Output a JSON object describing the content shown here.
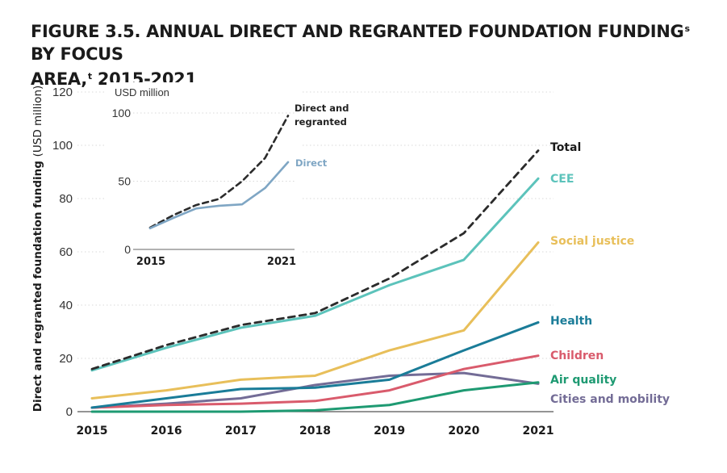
{
  "figure": {
    "title_line1": "FIGURE 3.5.  ANNUAL DIRECT AND REGRANTED FOUNDATION FUNDING",
    "title_sup1": "s",
    "title_mid": " BY FOCUS",
    "title_line2": "AREA,",
    "title_sup2": "t",
    "title_end": " 2015-2021"
  },
  "chart_data": [
    {
      "type": "line",
      "title": "FIGURE 3.5.  ANNUAL DIRECT AND REGRANTED FOUNDATION FUNDING BY FOCUS AREA, 2015-2021",
      "ylabel": "Direct and regranted foundation funding",
      "ylabel_unit": "(USD million)",
      "xlabel": "",
      "ylim": [
        0,
        120
      ],
      "yticks": [
        "0",
        "20",
        "40",
        "60",
        "80",
        "100",
        "120"
      ],
      "x": [
        "2015",
        "2016",
        "2017",
        "2018",
        "2019",
        "2020",
        "2021"
      ],
      "grid": true,
      "legend": "direct labels at right end of lines",
      "series": [
        {
          "name": "Total",
          "color": "#2b2b2b",
          "dashed": true,
          "values": [
            16,
            25,
            32.5,
            37,
            50,
            67,
            98
          ]
        },
        {
          "name": "CEE",
          "color": "#5cc3bb",
          "values": [
            15.5,
            24,
            31.5,
            36,
            47.5,
            57,
            87.5
          ]
        },
        {
          "name": "Social justice",
          "color": "#e8bf5a",
          "values": [
            5,
            8,
            12,
            13.5,
            23,
            30.5,
            63.5
          ]
        },
        {
          "name": "Health",
          "color": "#1a7c98",
          "values": [
            1.5,
            5,
            8.5,
            9,
            12,
            23,
            33.5
          ]
        },
        {
          "name": "Children",
          "color": "#d95b6c",
          "values": [
            1.5,
            2.5,
            3,
            4,
            8,
            16,
            21
          ]
        },
        {
          "name": "Air quality",
          "color": "#1e9a72",
          "values": [
            0,
            0,
            0,
            0.5,
            2.5,
            8,
            11
          ]
        },
        {
          "name": "Cities and mobility",
          "color": "#736c96",
          "values": [
            1.5,
            3,
            5,
            10,
            13.5,
            14.5,
            10.5
          ]
        }
      ]
    },
    {
      "type": "line",
      "ylabel_unit": "USD million",
      "ylim": [
        0,
        100
      ],
      "yticks": [
        "0",
        "50",
        "100"
      ],
      "x_ticks": [
        "2015",
        "2021"
      ],
      "x": [
        "2015",
        "2016",
        "2017",
        "2018",
        "2019",
        "2020",
        "2021"
      ],
      "series": [
        {
          "name": "Direct and regranted",
          "color": "#2b2b2b",
          "dashed": true,
          "values": [
            16,
            25,
            32.5,
            37,
            50,
            67,
            98
          ]
        },
        {
          "name": "Direct",
          "color": "#7fa6c4",
          "values": [
            15.5,
            23,
            30,
            32,
            33,
            45,
            64
          ]
        }
      ]
    }
  ]
}
